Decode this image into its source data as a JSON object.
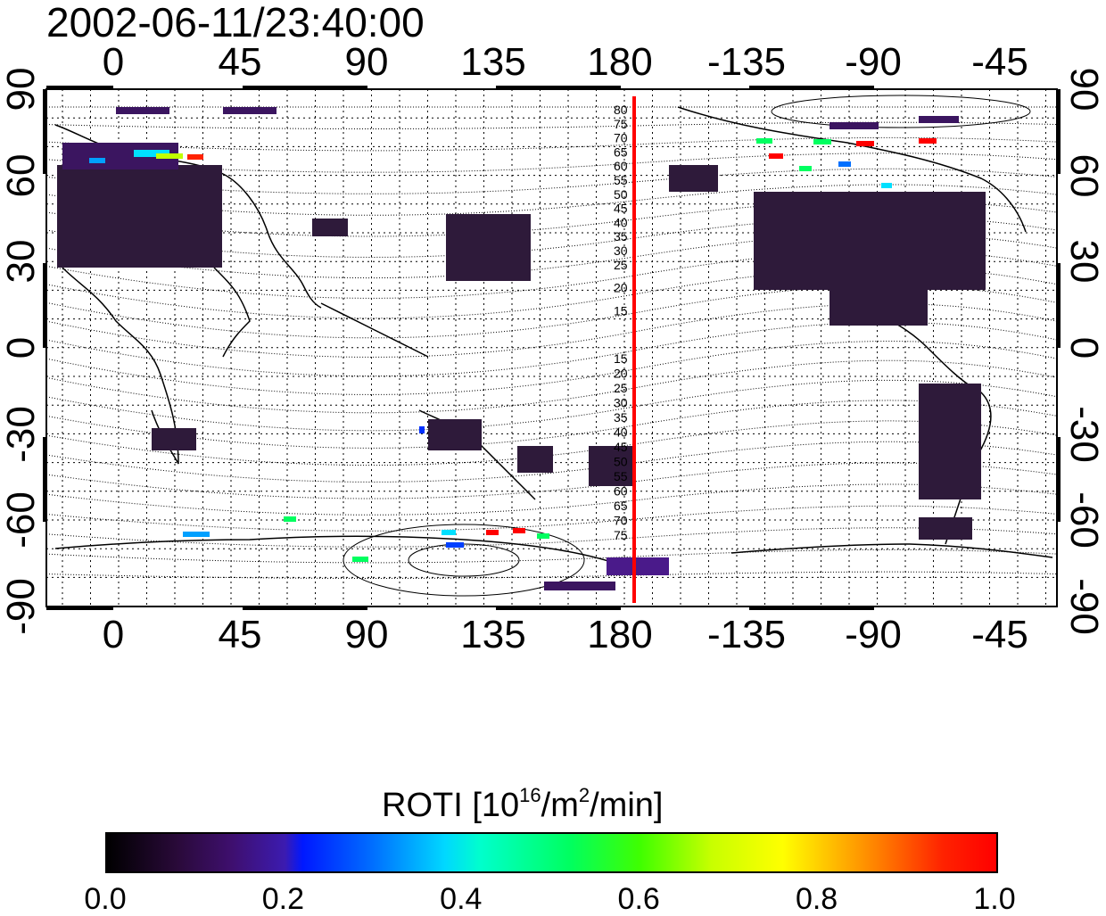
{
  "title": "2002-06-11/23:40:00",
  "lon_ticks": [
    "0",
    "45",
    "90",
    "135",
    "180",
    "-135",
    "-90",
    "-45"
  ],
  "lat_ticks": [
    "90",
    "60",
    "30",
    "0",
    "-30",
    "-60",
    "-90"
  ],
  "contour_labels_north": [
    "80",
    "75",
    "70",
    "65",
    "60",
    "55",
    "50",
    "45",
    "40",
    "35",
    "30",
    "25",
    "20",
    "15"
  ],
  "contour_labels_south": [
    "15",
    "20",
    "25",
    "30",
    "35",
    "40",
    "45",
    "50",
    "55",
    "60",
    "65",
    "70",
    "75"
  ],
  "colorbar": {
    "title_prefix": "ROTI  [10",
    "title_exp1": "16",
    "title_mid": "/m",
    "title_exp2": "2",
    "title_suffix": "/min]",
    "ticks": [
      "0.0",
      "0.2",
      "0.4",
      "0.6",
      "0.8",
      "1.0"
    ]
  },
  "colors": {
    "terminator_line": "#ff0000",
    "low_roti": "#3a1052",
    "high_roti": "#ff0000"
  }
}
